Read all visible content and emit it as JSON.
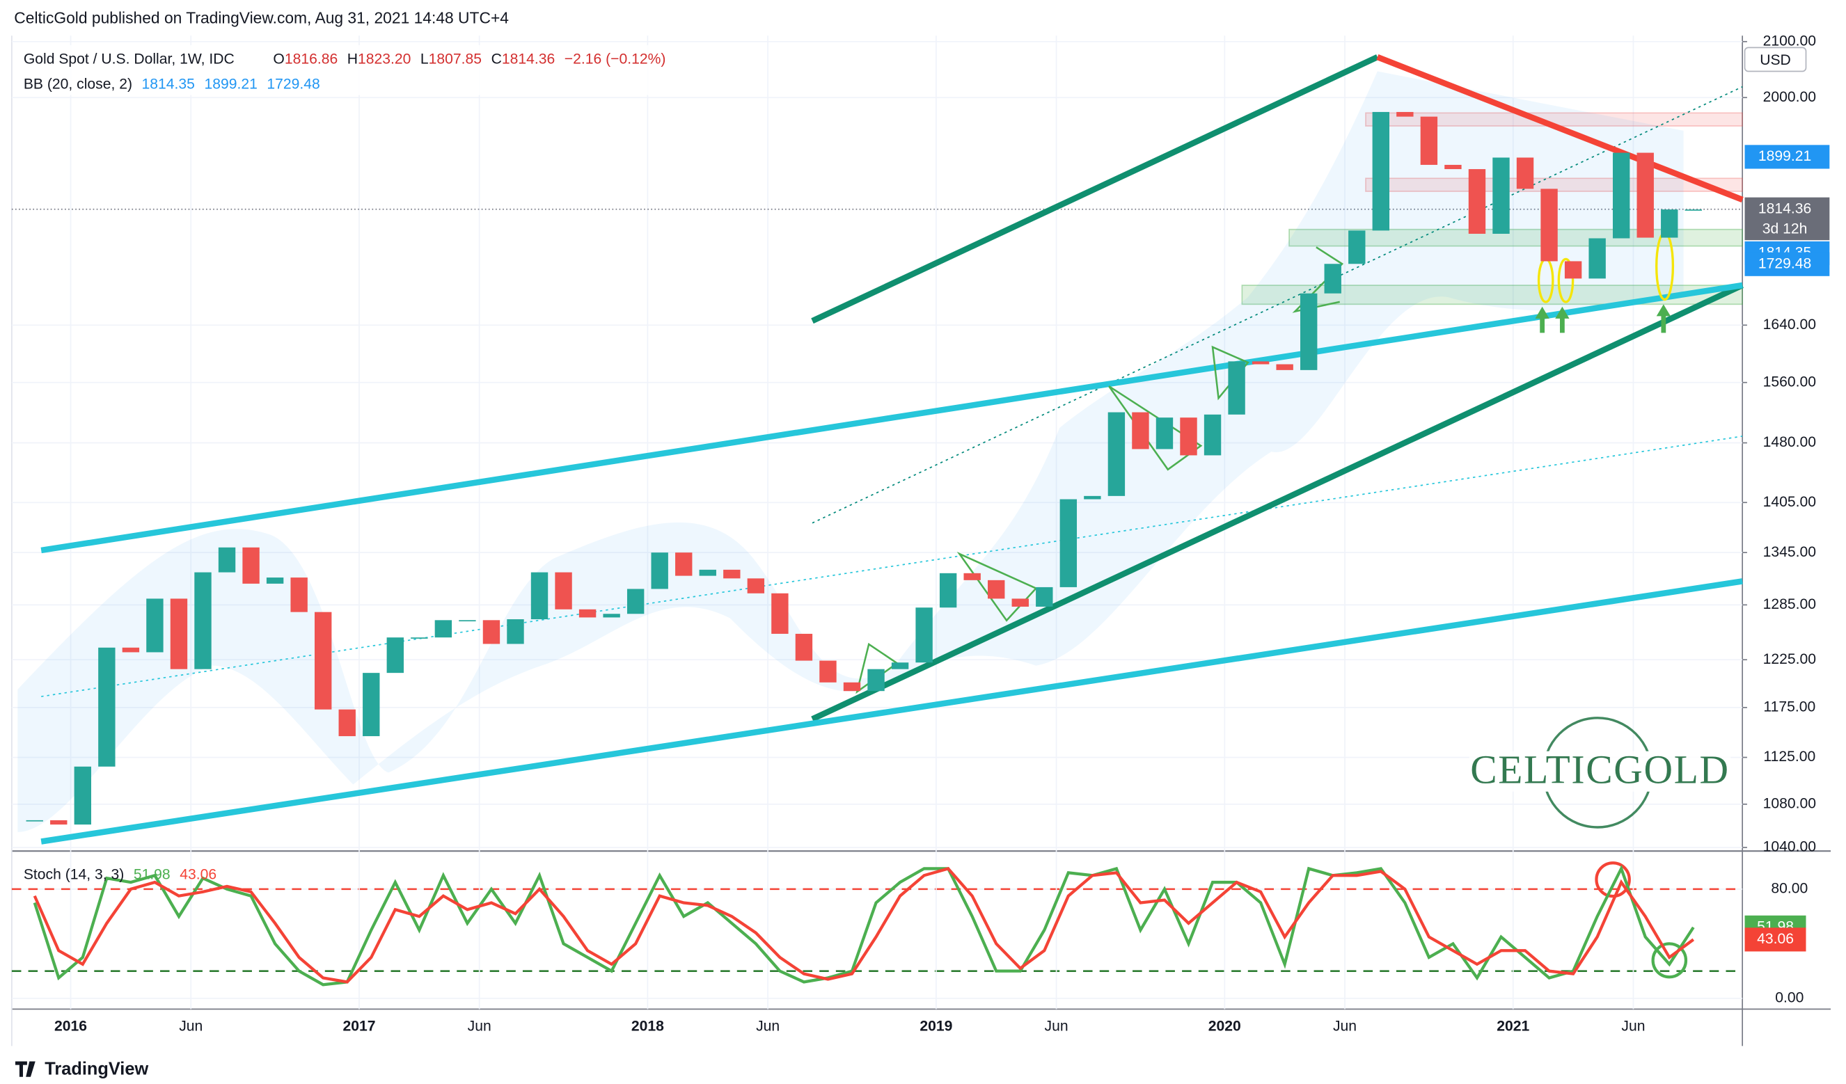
{
  "page": {
    "published": "CelticGold published on TradingView.com, Aug 31, 2021 14:48 UTC+4",
    "brand": "TradingView"
  },
  "chart_data": [
    {
      "type": "candlestick",
      "title": "Gold Spot / U.S. Dollar, 1W, IDC",
      "ohlc": [
        {
          "label": "O",
          "value": "1816.86"
        },
        {
          "label": "H",
          "value": "1823.20"
        },
        {
          "label": "L",
          "value": "1807.85"
        },
        {
          "label": "C",
          "value": "1814.36"
        }
      ],
      "change": "−2.16 (−0.12%)",
      "currency": "USD",
      "countdown": "3d 12h",
      "indicator": {
        "name": "BB (20, close, 2)",
        "values": [
          1814.35,
          1899.21,
          1729.48
        ],
        "color": "#2196f3"
      },
      "last_price": 1814.36,
      "watermark": "CELTICGOLD",
      "categories": [
        null,
        null,
        "2016",
        null,
        null,
        null,
        null,
        "Jun",
        null,
        null,
        null,
        null,
        null,
        null,
        "2017",
        null,
        null,
        null,
        null,
        "Jun",
        null,
        null,
        null,
        null,
        null,
        null,
        "2018",
        null,
        null,
        null,
        null,
        "Jun",
        null,
        null,
        null,
        null,
        null,
        null,
        "2019",
        null,
        null,
        null,
        null,
        "Jun",
        null,
        null,
        null,
        null,
        null,
        null,
        "2020",
        null,
        null,
        null,
        null,
        "Jun",
        null,
        null,
        null,
        null,
        null,
        null,
        "2021",
        null,
        null,
        null,
        null,
        "Jun",
        null,
        null
      ],
      "series": [
        {
          "values": [
            1065,
            1061,
            1116,
            1238,
            1233,
            1292,
            1215,
            1322,
            1351,
            1309,
            1316,
            1277,
            1173,
            1146,
            1211,
            1249,
            1249,
            1268,
            1268,
            1242,
            1269,
            1322,
            1280,
            1271,
            1275,
            1303,
            1345,
            1318,
            1325,
            1315,
            1298,
            1253,
            1224,
            1201,
            1192,
            1215,
            1222,
            1282,
            1321,
            1313,
            1292,
            1283,
            1305,
            1409,
            1413,
            1520,
            1472,
            1513,
            1464,
            1517,
            1589,
            1585,
            1577,
            1686,
            1730,
            1781,
            1975,
            1967,
            1886,
            1879,
            1776,
            1898,
            1847,
            1734,
            1708,
            1769,
            1906,
            1770,
            1814,
            1814
          ],
          "up_color": "#26a69a",
          "down_color": "#ef5350"
        }
      ],
      "ylim": [
        1040,
        2100
      ],
      "yticks": [
        {
          "value": 1040,
          "label": "1040.00"
        },
        {
          "value": 1080,
          "label": "1080.00"
        },
        {
          "value": 1125,
          "label": "1125.00"
        },
        {
          "value": 1175,
          "label": "1175.00"
        },
        {
          "value": 1225,
          "label": "1225.00"
        },
        {
          "value": 1285,
          "label": "1285.00"
        },
        {
          "value": 1345,
          "label": "1345.00"
        },
        {
          "value": 1405,
          "label": "1405.00"
        },
        {
          "value": 1480,
          "label": "1480.00"
        },
        {
          "value": 1560,
          "label": "1560.00"
        },
        {
          "value": 1640,
          "label": "1640.00"
        },
        {
          "value": 2000,
          "label": "2000.00"
        },
        {
          "value": 2100,
          "label": "2100.00"
        }
      ],
      "log_scale": true,
      "grid": true
    },
    {
      "type": "line",
      "title": "Stoch (14, 3, 3)",
      "series": [
        {
          "color": "#4caf50",
          "values": [
            70,
            15,
            30,
            88,
            85,
            90,
            60,
            88,
            80,
            75,
            40,
            20,
            10,
            12,
            50,
            85,
            50,
            90,
            55,
            80,
            55,
            90,
            40,
            30,
            20,
            55,
            90,
            60,
            70,
            55,
            40,
            20,
            12,
            15,
            20,
            70,
            85,
            95,
            95,
            60,
            20,
            20,
            50,
            92,
            90,
            95,
            50,
            80,
            40,
            85,
            85,
            70,
            25,
            95,
            90,
            92,
            95,
            70,
            30,
            40,
            15,
            45,
            30,
            15,
            20,
            60,
            95,
            45,
            25,
            51.98
          ]
        },
        {
          "color": "#f44336",
          "values": [
            75,
            35,
            25,
            55,
            80,
            85,
            75,
            78,
            82,
            78,
            55,
            30,
            15,
            12,
            30,
            65,
            60,
            75,
            65,
            70,
            62,
            80,
            60,
            35,
            25,
            40,
            75,
            70,
            68,
            60,
            48,
            30,
            18,
            14,
            18,
            45,
            75,
            90,
            95,
            75,
            40,
            22,
            35,
            75,
            90,
            92,
            70,
            72,
            55,
            70,
            85,
            78,
            45,
            70,
            90,
            90,
            93,
            80,
            45,
            35,
            25,
            35,
            35,
            20,
            18,
            45,
            85,
            60,
            30,
            43.06
          ]
        }
      ],
      "bands": [
        {
          "value": 80,
          "color": "#f44336"
        },
        {
          "value": 20,
          "color": "#2e7d32"
        }
      ],
      "ylim": [
        -7,
        107
      ],
      "yticks": [
        {
          "value": 0,
          "label": "0.00"
        },
        {
          "value": 80,
          "label": "80.00"
        }
      ],
      "grid": true
    }
  ]
}
